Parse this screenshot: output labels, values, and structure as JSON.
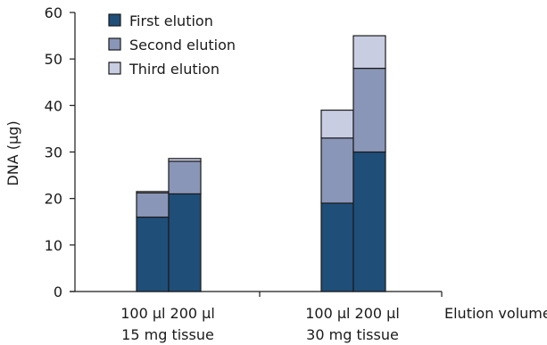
{
  "chart_data": {
    "type": "bar",
    "stacked": true,
    "ylabel": "DNA (µg)",
    "xlabel": "Elution volume",
    "ylim": [
      0,
      60
    ],
    "yticks": [
      0,
      10,
      20,
      30,
      40,
      50,
      60
    ],
    "groups": [
      {
        "volume_labels": [
          "100 µl",
          "200 µl"
        ],
        "sublabel": "15 mg tissue",
        "bars": [
          {
            "volume": "100 µl",
            "segments": [
              16,
              5.2,
              0.3
            ]
          },
          {
            "volume": "200 µl",
            "segments": [
              21,
              7,
              0.6
            ]
          }
        ]
      },
      {
        "volume_labels": [
          "100 µl",
          "200 µl"
        ],
        "sublabel": "30 mg tissue",
        "bars": [
          {
            "volume": "100 µl",
            "segments": [
              19,
              14,
              6
            ]
          },
          {
            "volume": "200 µl",
            "segments": [
              30,
              18,
              7
            ]
          }
        ]
      }
    ],
    "series": [
      {
        "name": "First elution",
        "color": "#1f4e79"
      },
      {
        "name": "Second elution",
        "color": "#8a96b8"
      },
      {
        "name": "Third elution",
        "color": "#c9cde2"
      }
    ],
    "legend_position": "top-left"
  }
}
